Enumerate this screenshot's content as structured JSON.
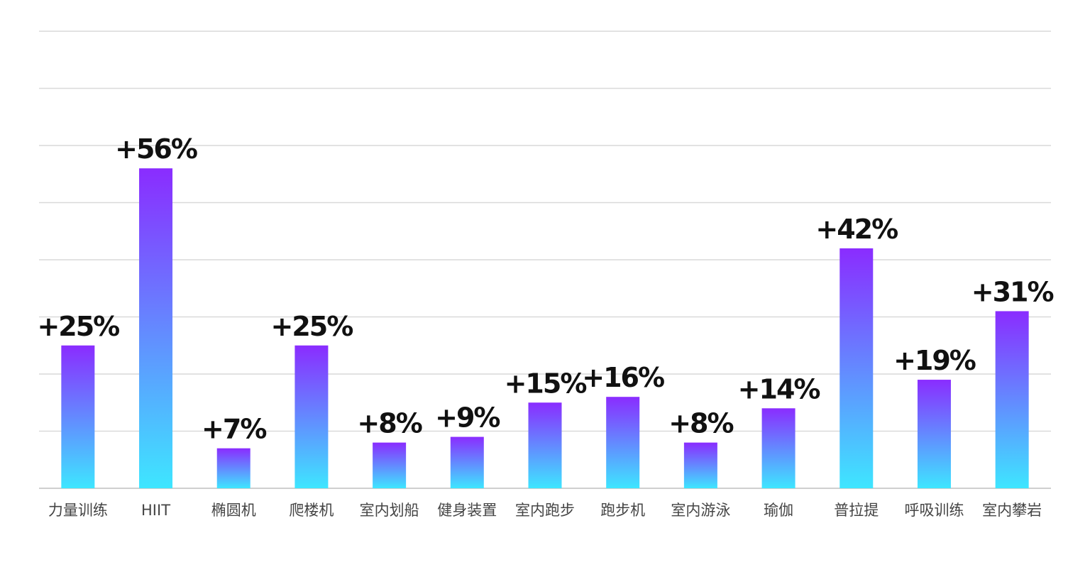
{
  "chart_data": {
    "type": "bar",
    "title": "",
    "xlabel": "",
    "ylabel": "",
    "ylim": [
      0,
      80
    ],
    "grid": true,
    "categories": [
      "力量训练",
      "HIIT",
      "椭圆机",
      "爬楼机",
      "室内划船",
      "健身装置",
      "室内跑步",
      "跑步机",
      "室内游泳",
      "瑜伽",
      "普拉提",
      "呼吸训练",
      "室内攀岩"
    ],
    "values": [
      25,
      56,
      7,
      25,
      8,
      9,
      15,
      16,
      8,
      14,
      42,
      19,
      31
    ],
    "labels": [
      "+25%",
      "+56%",
      "+7%",
      "+25%",
      "+8%",
      "+9%",
      "+15%",
      "+16%",
      "+8%",
      "+14%",
      "+42%",
      "+19%",
      "+31%"
    ],
    "colors": {
      "bar_top": "#8a2cff",
      "bar_bottom": "#3ee6ff",
      "grid": "#d9d9d9",
      "label": "#111111",
      "tick": "#444444"
    }
  }
}
